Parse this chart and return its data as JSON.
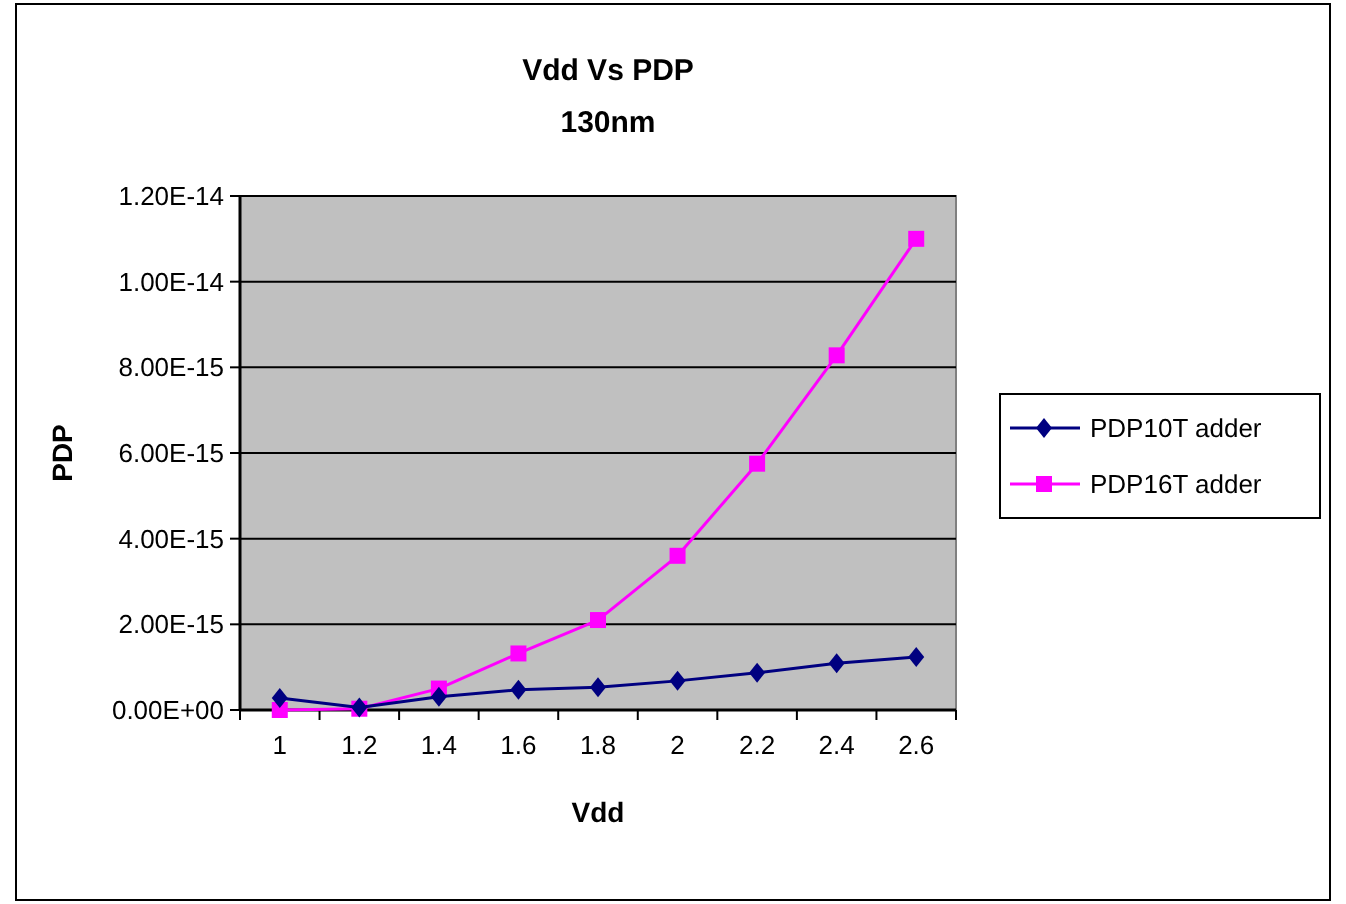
{
  "chart_data": {
    "type": "line",
    "title": "Vdd Vs PDP",
    "subtitle": "130nm",
    "xlabel": "Vdd",
    "ylabel": "PDP",
    "categories": [
      "1",
      "1.2",
      "1.4",
      "1.6",
      "1.8",
      "2",
      "2.2",
      "2.4",
      "2.6"
    ],
    "series": [
      {
        "name": "PDP10T adder",
        "color": "#000080",
        "marker": "diamond",
        "values": [
          2.8e-16,
          6e-17,
          3.1e-16,
          4.7e-16,
          5.3e-16,
          6.8e-16,
          8.7e-16,
          1.09e-15,
          1.24e-15
        ]
      },
      {
        "name": "PDP16T adder",
        "color": "#ff00ff",
        "marker": "square",
        "values": [
          0,
          3e-17,
          5e-16,
          1.32e-15,
          2.1e-15,
          3.6e-15,
          5.75e-15,
          8.28e-15,
          1.1e-14
        ]
      }
    ],
    "ylim": [
      0,
      1.2e-14
    ],
    "yticks": [
      {
        "value": 0,
        "label": "0.00E+00"
      },
      {
        "value": 2e-15,
        "label": "2.00E-15"
      },
      {
        "value": 4e-15,
        "label": "4.00E-15"
      },
      {
        "value": 6e-15,
        "label": "6.00E-15"
      },
      {
        "value": 8e-15,
        "label": "8.00E-15"
      },
      {
        "value": 1e-14,
        "label": "1.00E-14"
      },
      {
        "value": 1.2e-14,
        "label": "1.20E-14"
      }
    ],
    "grid": "y",
    "legend": "right"
  }
}
